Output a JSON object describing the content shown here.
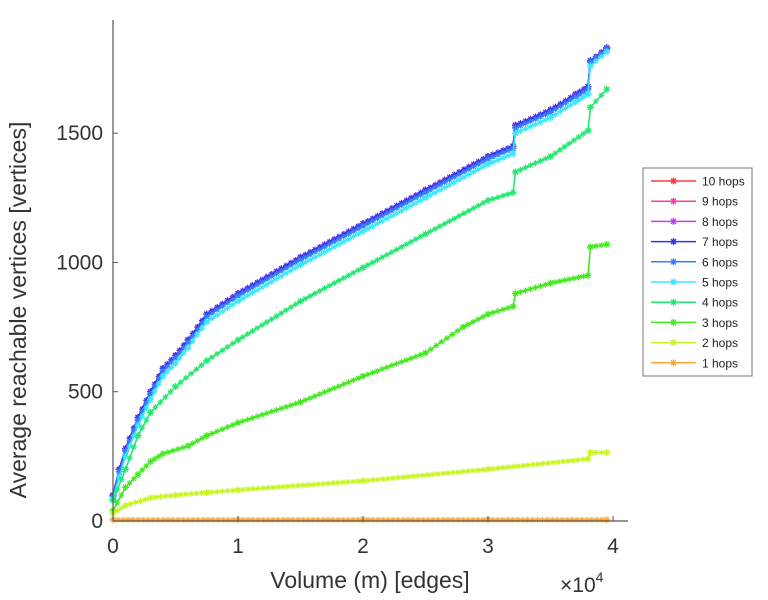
{
  "chart_data": {
    "type": "line",
    "title": "",
    "xlabel": "Volume (m) [edges]",
    "ylabel": "Average reachable vertices [vertices]",
    "x_multiplier_label": "×10",
    "x_multiplier_exp": "4",
    "xlim": [
      0,
      4.12
    ],
    "ylim": [
      0,
      1930
    ],
    "xticks": [
      0,
      1,
      2,
      3,
      4
    ],
    "xtick_labels": [
      "0",
      "1",
      "2",
      "3",
      "4"
    ],
    "yticks": [
      0,
      500,
      1000,
      1500
    ],
    "ytick_labels": [
      "0",
      "500",
      "1000",
      "1500"
    ],
    "grid": false,
    "legend_position": "outside-right",
    "marker": "asterisk",
    "series": [
      {
        "name": "10 hops",
        "color": "#ff3b3b",
        "x": [
          0,
          0.05,
          0.1,
          0.2,
          0.3,
          0.4,
          0.5,
          0.6,
          0.75,
          1,
          1.5,
          2,
          2.5,
          3,
          3.2,
          3.22,
          3.5,
          3.7,
          3.8,
          3.82,
          3.95
        ],
        "y": [
          100,
          200,
          280,
          400,
          500,
          590,
          640,
          700,
          800,
          880,
          1020,
          1150,
          1280,
          1410,
          1450,
          1530,
          1590,
          1650,
          1680,
          1780,
          1830
        ]
      },
      {
        "name": "9 hops",
        "color": "#ff3ba8",
        "x": [
          0,
          0.05,
          0.1,
          0.2,
          0.3,
          0.4,
          0.5,
          0.6,
          0.75,
          1,
          1.5,
          2,
          2.5,
          3,
          3.2,
          3.22,
          3.5,
          3.7,
          3.8,
          3.82,
          3.95
        ],
        "y": [
          100,
          200,
          280,
          400,
          500,
          590,
          640,
          700,
          800,
          880,
          1020,
          1150,
          1280,
          1410,
          1450,
          1530,
          1590,
          1650,
          1680,
          1780,
          1830
        ]
      },
      {
        "name": "8 hops",
        "color": "#c43bff",
        "x": [
          0,
          0.05,
          0.1,
          0.2,
          0.3,
          0.4,
          0.5,
          0.6,
          0.75,
          1,
          1.5,
          2,
          2.5,
          3,
          3.2,
          3.22,
          3.5,
          3.7,
          3.8,
          3.82,
          3.95
        ],
        "y": [
          100,
          200,
          280,
          400,
          500,
          590,
          640,
          700,
          800,
          880,
          1020,
          1150,
          1280,
          1410,
          1450,
          1530,
          1590,
          1650,
          1680,
          1780,
          1830
        ]
      },
      {
        "name": "7 hops",
        "color": "#3434e8",
        "x": [
          0,
          0.05,
          0.1,
          0.2,
          0.3,
          0.4,
          0.5,
          0.6,
          0.75,
          1,
          1.5,
          2,
          2.5,
          3,
          3.2,
          3.22,
          3.5,
          3.7,
          3.8,
          3.82,
          3.95
        ],
        "y": [
          100,
          200,
          280,
          400,
          500,
          590,
          640,
          700,
          800,
          880,
          1020,
          1150,
          1280,
          1410,
          1450,
          1530,
          1590,
          1650,
          1680,
          1780,
          1830
        ]
      },
      {
        "name": "6 hops",
        "color": "#3a7cff",
        "x": [
          0,
          0.05,
          0.1,
          0.2,
          0.3,
          0.4,
          0.5,
          0.6,
          0.75,
          1,
          1.5,
          2,
          2.5,
          3,
          3.2,
          3.22,
          3.5,
          3.7,
          3.8,
          3.82,
          3.95
        ],
        "y": [
          95,
          190,
          270,
          390,
          490,
          580,
          630,
          690,
          790,
          870,
          1010,
          1140,
          1270,
          1400,
          1440,
          1520,
          1580,
          1640,
          1670,
          1775,
          1825
        ]
      },
      {
        "name": "5 hops",
        "color": "#33eaff",
        "x": [
          0,
          0.05,
          0.1,
          0.2,
          0.3,
          0.4,
          0.5,
          0.6,
          0.75,
          1,
          1.5,
          2,
          2.5,
          3,
          3.2,
          3.22,
          3.5,
          3.7,
          3.8,
          3.82,
          3.95
        ],
        "y": [
          85,
          170,
          250,
          370,
          470,
          560,
          610,
          670,
          770,
          850,
          990,
          1120,
          1250,
          1380,
          1420,
          1500,
          1560,
          1620,
          1650,
          1760,
          1815
        ]
      },
      {
        "name": "4 hops",
        "color": "#22e870",
        "x": [
          0,
          0.1,
          0.2,
          0.3,
          0.5,
          0.75,
          1,
          1.5,
          2,
          2.5,
          3,
          3.2,
          3.22,
          3.5,
          3.8,
          3.82,
          3.95
        ],
        "y": [
          80,
          200,
          330,
          420,
          520,
          620,
          700,
          850,
          980,
          1110,
          1240,
          1270,
          1350,
          1410,
          1510,
          1600,
          1670
        ]
      },
      {
        "name": "3 hops",
        "color": "#44e822",
        "x": [
          0,
          0.1,
          0.2,
          0.3,
          0.4,
          0.6,
          0.75,
          1,
          1.5,
          2,
          2.5,
          2.8,
          3,
          3.2,
          3.22,
          3.5,
          3.8,
          3.82,
          3.95
        ],
        "y": [
          40,
          130,
          180,
          230,
          260,
          290,
          330,
          380,
          460,
          560,
          650,
          750,
          800,
          830,
          880,
          920,
          950,
          1060,
          1070
        ]
      },
      {
        "name": "2 hops",
        "color": "#c8f522",
        "x": [
          0,
          0.1,
          0.3,
          0.5,
          0.75,
          1,
          2,
          3,
          3.8,
          3.82,
          3.95
        ],
        "y": [
          30,
          60,
          90,
          100,
          110,
          120,
          155,
          200,
          240,
          265,
          265
        ]
      },
      {
        "name": "1 hops",
        "color": "#ffa733",
        "x": [
          0,
          1,
          2,
          3,
          3.95
        ],
        "y": [
          5,
          5,
          5,
          5,
          5
        ]
      }
    ]
  }
}
